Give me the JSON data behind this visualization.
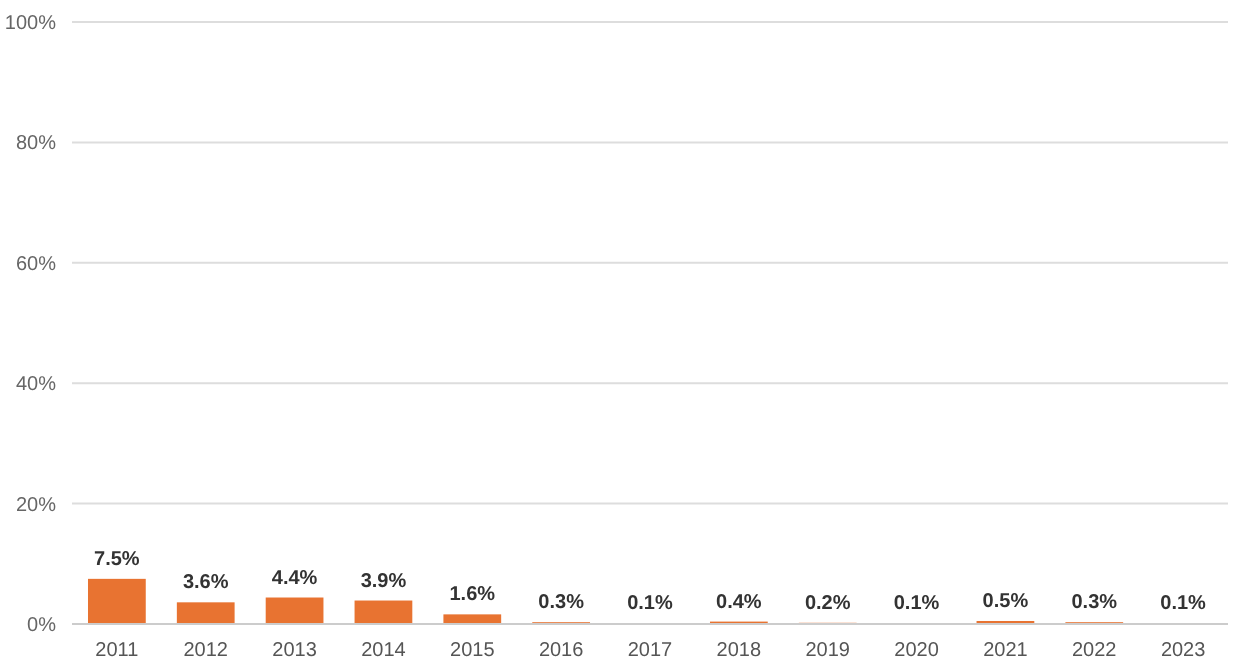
{
  "chart_data": {
    "type": "bar",
    "categories": [
      "2011",
      "2012",
      "2013",
      "2014",
      "2015",
      "2016",
      "2017",
      "2018",
      "2019",
      "2020",
      "2021",
      "2022",
      "2023"
    ],
    "values": [
      7.5,
      3.6,
      4.4,
      3.9,
      1.6,
      0.3,
      0.1,
      0.4,
      0.2,
      0.1,
      0.5,
      0.3,
      0.1
    ],
    "value_labels": [
      "7.5%",
      "3.6%",
      "4.4%",
      "3.9%",
      "1.6%",
      "0.3%",
      "0.1%",
      "0.4%",
      "0.2%",
      "0.1%",
      "0.5%",
      "0.3%",
      "0.1%"
    ],
    "color": "#e87331",
    "ylim": [
      0,
      100
    ],
    "yticks": [
      {
        "value": 0,
        "label": "0%"
      },
      {
        "value": 20,
        "label": "20%"
      },
      {
        "value": 40,
        "label": "40%"
      },
      {
        "value": 60,
        "label": "60%"
      },
      {
        "value": 80,
        "label": "80%"
      },
      {
        "value": 100,
        "label": "100%"
      }
    ],
    "grid": "y"
  }
}
